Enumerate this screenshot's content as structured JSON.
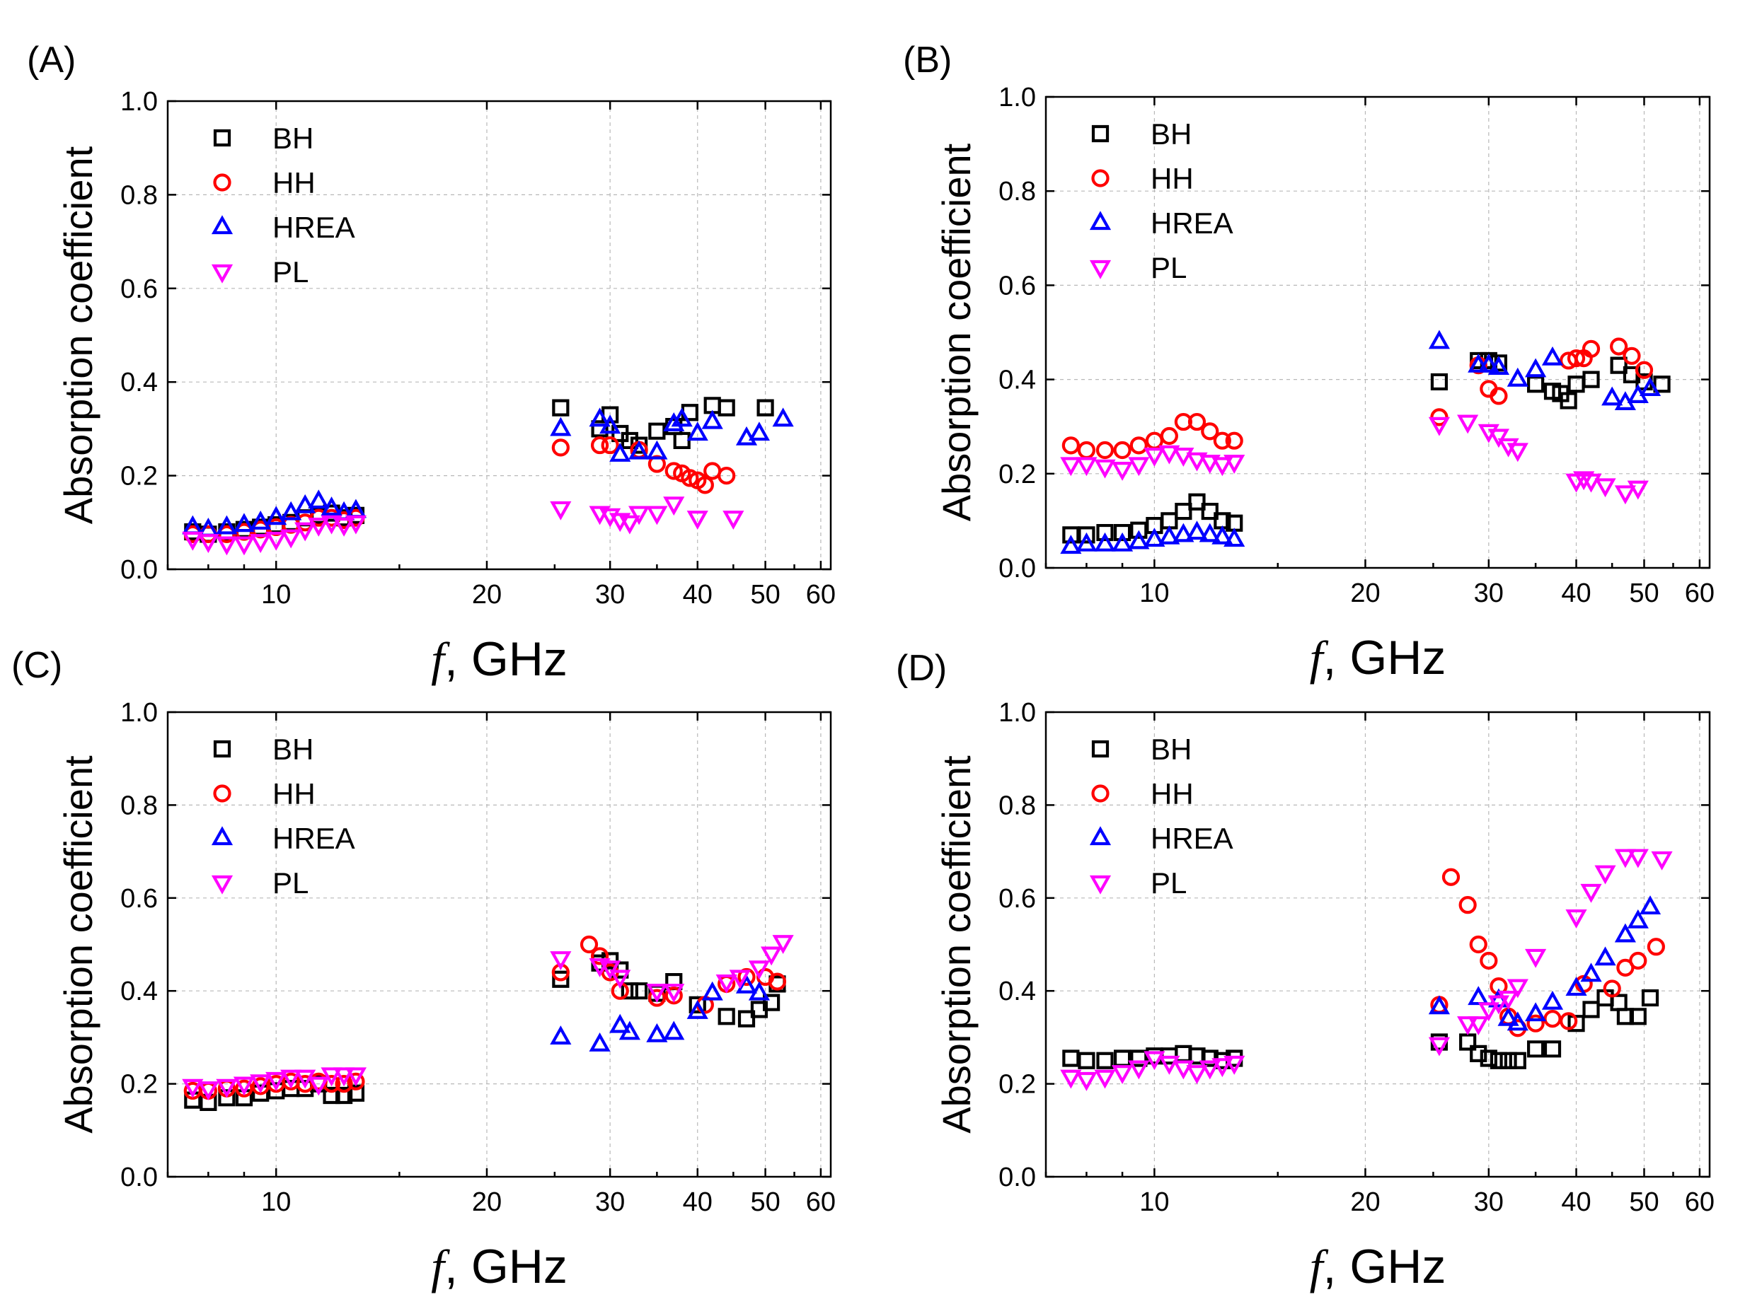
{
  "figure": {
    "series_styles": {
      "BH": {
        "color": "#000000",
        "marker": "square"
      },
      "HH": {
        "color": "#ff0000",
        "marker": "circle"
      },
      "HREA": {
        "color": "#0000ff",
        "marker": "triangle-up"
      },
      "PL": {
        "color": "#ff00ff",
        "marker": "triangle-down"
      }
    }
  },
  "chart_data": [
    {
      "panel_label": "(A)",
      "type": "scatter",
      "xlabel_italic": "f",
      "xlabel_rest": ", GHz",
      "ylabel": "Absorption coefficient",
      "xscale": "log",
      "xlim": [
        7,
        62
      ],
      "ylim": [
        0,
        1
      ],
      "xticks": [
        10,
        20,
        30,
        40,
        50,
        60
      ],
      "yticks": [
        0.0,
        0.2,
        0.4,
        0.6,
        0.8,
        1.0
      ],
      "grid": true,
      "legend_position": "top-left",
      "series": [
        {
          "name": "BH",
          "x": [
            7.6,
            8.0,
            8.5,
            9.0,
            9.5,
            10.0,
            10.5,
            11.0,
            11.5,
            12.0,
            12.5,
            13.0,
            25.5,
            29.0,
            30.0,
            31.0,
            32.0,
            33.0,
            35.0,
            37.0,
            38.0,
            39.0,
            42.0,
            44.0,
            50.0
          ],
          "y": [
            0.08,
            0.075,
            0.08,
            0.085,
            0.09,
            0.095,
            0.1,
            0.11,
            0.115,
            0.12,
            0.11,
            0.115,
            0.345,
            0.3,
            0.33,
            0.29,
            0.275,
            0.265,
            0.295,
            0.305,
            0.275,
            0.335,
            0.35,
            0.345,
            0.345
          ]
        },
        {
          "name": "HH",
          "x": [
            7.6,
            8.0,
            8.5,
            9.0,
            9.5,
            10.0,
            10.5,
            11.0,
            11.5,
            12.0,
            12.5,
            13.0,
            25.5,
            29.0,
            30.0,
            33.0,
            35.0,
            37.0,
            38.0,
            39.0,
            40.0,
            41.0,
            42.0,
            44.0
          ],
          "y": [
            0.075,
            0.075,
            0.075,
            0.08,
            0.085,
            0.09,
            0.095,
            0.1,
            0.11,
            0.11,
            0.105,
            0.11,
            0.26,
            0.265,
            0.265,
            0.255,
            0.225,
            0.21,
            0.205,
            0.195,
            0.19,
            0.18,
            0.21,
            0.2
          ]
        },
        {
          "name": "HREA",
          "x": [
            7.6,
            8.0,
            8.5,
            9.0,
            9.5,
            10.0,
            10.5,
            11.0,
            11.5,
            12.0,
            12.5,
            13.0,
            25.5,
            29.0,
            30.0,
            31.0,
            33.0,
            35.0,
            37.0,
            38.0,
            40.0,
            42.0,
            47.0,
            49.0,
            53.0
          ],
          "y": [
            0.09,
            0.085,
            0.09,
            0.095,
            0.1,
            0.11,
            0.12,
            0.135,
            0.145,
            0.13,
            0.12,
            0.125,
            0.3,
            0.32,
            0.305,
            0.245,
            0.25,
            0.25,
            0.31,
            0.32,
            0.29,
            0.315,
            0.28,
            0.29,
            0.32
          ]
        },
        {
          "name": "PL",
          "x": [
            7.6,
            8.0,
            8.5,
            9.0,
            9.5,
            10.0,
            10.5,
            11.0,
            11.5,
            12.0,
            12.5,
            13.0,
            25.5,
            29.0,
            30.0,
            31.0,
            32.0,
            33.0,
            35.0,
            37.0,
            40.0,
            45.0
          ],
          "y": [
            0.065,
            0.06,
            0.055,
            0.055,
            0.06,
            0.065,
            0.07,
            0.085,
            0.095,
            0.1,
            0.095,
            0.1,
            0.13,
            0.12,
            0.115,
            0.105,
            0.1,
            0.12,
            0.12,
            0.14,
            0.11,
            0.11
          ]
        }
      ]
    },
    {
      "panel_label": "(B)",
      "type": "scatter",
      "xlabel_italic": "f",
      "xlabel_rest": ", GHz",
      "ylabel": "Absorption coefficient",
      "xscale": "log",
      "xlim": [
        7,
        62
      ],
      "ylim": [
        0,
        1
      ],
      "xticks": [
        10,
        20,
        30,
        40,
        50,
        60
      ],
      "yticks": [
        0.0,
        0.2,
        0.4,
        0.6,
        0.8,
        1.0
      ],
      "grid": true,
      "legend_position": "top-left",
      "series": [
        {
          "name": "BH",
          "x": [
            7.6,
            8.0,
            8.5,
            9.0,
            9.5,
            10.0,
            10.5,
            11.0,
            11.5,
            12.0,
            12.5,
            13.0,
            25.5,
            29.0,
            30.0,
            31.0,
            35.0,
            37.0,
            38.0,
            39.0,
            40.0,
            42.0,
            46.0,
            48.0,
            50.0,
            53.0
          ],
          "y": [
            0.07,
            0.07,
            0.075,
            0.075,
            0.08,
            0.09,
            0.1,
            0.12,
            0.14,
            0.12,
            0.1,
            0.095,
            0.395,
            0.44,
            0.44,
            0.435,
            0.39,
            0.375,
            0.37,
            0.355,
            0.39,
            0.4,
            0.43,
            0.41,
            0.395,
            0.39
          ]
        },
        {
          "name": "HH",
          "x": [
            7.6,
            8.0,
            8.5,
            9.0,
            9.5,
            10.0,
            10.5,
            11.0,
            11.5,
            12.0,
            12.5,
            13.0,
            25.5,
            29.0,
            30.0,
            31.0,
            39.0,
            40.0,
            41.0,
            42.0,
            46.0,
            48.0,
            50.0
          ],
          "y": [
            0.26,
            0.25,
            0.25,
            0.25,
            0.26,
            0.27,
            0.28,
            0.31,
            0.31,
            0.29,
            0.27,
            0.27,
            0.32,
            0.43,
            0.38,
            0.365,
            0.44,
            0.445,
            0.445,
            0.465,
            0.47,
            0.45,
            0.42
          ]
        },
        {
          "name": "HREA",
          "x": [
            7.6,
            8.0,
            8.5,
            9.0,
            9.5,
            10.0,
            10.5,
            11.0,
            11.5,
            12.0,
            12.5,
            13.0,
            25.5,
            29.0,
            30.0,
            31.0,
            33.0,
            35.0,
            37.0,
            45.0,
            47.0,
            49.0,
            51.0
          ],
          "y": [
            0.045,
            0.05,
            0.05,
            0.05,
            0.055,
            0.06,
            0.065,
            0.07,
            0.075,
            0.07,
            0.065,
            0.06,
            0.48,
            0.43,
            0.43,
            0.425,
            0.4,
            0.42,
            0.445,
            0.36,
            0.35,
            0.365,
            0.38
          ]
        },
        {
          "name": "PL",
          "x": [
            7.6,
            8.0,
            8.5,
            9.0,
            9.5,
            10.0,
            10.5,
            11.0,
            11.5,
            12.0,
            12.5,
            13.0,
            25.5,
            28.0,
            30.0,
            31.0,
            32.0,
            33.0,
            40.0,
            41.0,
            42.0,
            44.0,
            47.0,
            49.0
          ],
          "y": [
            0.22,
            0.22,
            0.215,
            0.21,
            0.22,
            0.24,
            0.245,
            0.24,
            0.23,
            0.225,
            0.22,
            0.225,
            0.305,
            0.31,
            0.29,
            0.28,
            0.26,
            0.25,
            0.185,
            0.19,
            0.185,
            0.175,
            0.16,
            0.17
          ]
        }
      ]
    },
    {
      "panel_label": "(C)",
      "type": "scatter",
      "xlabel_italic": "f",
      "xlabel_rest": ", GHz",
      "ylabel": "Absorption coefficient",
      "xscale": "log",
      "xlim": [
        7,
        62
      ],
      "ylim": [
        0,
        1
      ],
      "xticks": [
        10,
        20,
        30,
        40,
        50,
        60
      ],
      "yticks": [
        0.0,
        0.2,
        0.4,
        0.6,
        0.8,
        1.0
      ],
      "grid": true,
      "legend_position": "top-left",
      "series": [
        {
          "name": "BH",
          "x": [
            7.6,
            8.0,
            8.5,
            9.0,
            9.5,
            10.0,
            10.5,
            11.0,
            11.5,
            12.0,
            12.5,
            13.0,
            25.5,
            29.0,
            30.0,
            31.0,
            32.0,
            33.0,
            35.0,
            37.0,
            40.0,
            44.0,
            47.0,
            49.0,
            51.0,
            52.0
          ],
          "y": [
            0.165,
            0.16,
            0.17,
            0.17,
            0.18,
            0.185,
            0.19,
            0.19,
            0.2,
            0.175,
            0.175,
            0.18,
            0.425,
            0.46,
            0.465,
            0.445,
            0.4,
            0.4,
            0.395,
            0.42,
            0.37,
            0.345,
            0.34,
            0.36,
            0.375,
            0.415
          ]
        },
        {
          "name": "HH",
          "x": [
            7.6,
            8.0,
            8.5,
            9.0,
            9.5,
            10.0,
            10.5,
            11.0,
            11.5,
            12.0,
            12.5,
            13.0,
            25.5,
            28.0,
            29.0,
            30.0,
            31.0,
            35.0,
            37.0,
            41.0,
            44.0,
            47.0,
            50.0,
            52.0
          ],
          "y": [
            0.185,
            0.185,
            0.19,
            0.19,
            0.195,
            0.2,
            0.205,
            0.2,
            0.205,
            0.2,
            0.2,
            0.205,
            0.44,
            0.5,
            0.475,
            0.44,
            0.4,
            0.385,
            0.39,
            0.37,
            0.415,
            0.43,
            0.43,
            0.42
          ]
        },
        {
          "name": "HREA",
          "x": [
            25.5,
            29.0,
            31.0,
            32.0,
            35.0,
            37.0,
            40.0,
            42.0,
            47.0,
            49.0
          ],
          "y": [
            0.3,
            0.285,
            0.325,
            0.31,
            0.305,
            0.31,
            0.355,
            0.395,
            0.41,
            0.395
          ]
        },
        {
          "name": "PL",
          "x": [
            7.6,
            8.0,
            8.5,
            9.0,
            9.5,
            10.0,
            10.5,
            11.0,
            11.5,
            12.0,
            12.5,
            13.0,
            25.5,
            29.0,
            30.0,
            31.0,
            35.0,
            37.0,
            44.0,
            46.0,
            49.0,
            51.0,
            53.0
          ],
          "y": [
            0.195,
            0.19,
            0.195,
            0.2,
            0.205,
            0.21,
            0.215,
            0.215,
            0.2,
            0.22,
            0.22,
            0.22,
            0.47,
            0.455,
            0.45,
            0.43,
            0.4,
            0.4,
            0.42,
            0.43,
            0.45,
            0.48,
            0.505
          ]
        }
      ]
    },
    {
      "panel_label": "(D)",
      "type": "scatter",
      "xlabel_italic": "f",
      "xlabel_rest": ", GHz",
      "ylabel": "Absorption coefficient",
      "xscale": "log",
      "xlim": [
        7,
        62
      ],
      "ylim": [
        0,
        1
      ],
      "xticks": [
        10,
        20,
        30,
        40,
        50,
        60
      ],
      "yticks": [
        0.0,
        0.2,
        0.4,
        0.6,
        0.8,
        1.0
      ],
      "grid": true,
      "legend_position": "top-left",
      "series": [
        {
          "name": "BH",
          "x": [
            7.6,
            8.0,
            8.5,
            9.0,
            9.5,
            10.0,
            10.5,
            11.0,
            11.5,
            12.0,
            12.5,
            13.0,
            25.5,
            28.0,
            29.0,
            30.0,
            31.0,
            32.0,
            33.0,
            35.0,
            37.0,
            40.0,
            42.0,
            44.0,
            46.0,
            47.0,
            49.0,
            51.0
          ],
          "y": [
            0.255,
            0.25,
            0.25,
            0.255,
            0.255,
            0.26,
            0.26,
            0.265,
            0.26,
            0.255,
            0.25,
            0.255,
            0.29,
            0.29,
            0.265,
            0.255,
            0.25,
            0.25,
            0.25,
            0.275,
            0.275,
            0.33,
            0.36,
            0.385,
            0.375,
            0.345,
            0.345,
            0.385
          ]
        },
        {
          "name": "HH",
          "x": [
            25.5,
            26.5,
            28.0,
            29.0,
            30.0,
            31.0,
            32.0,
            33.0,
            35.0,
            37.0,
            39.0,
            41.0,
            45.0,
            47.0,
            49.0,
            52.0
          ],
          "y": [
            0.37,
            0.645,
            0.585,
            0.5,
            0.465,
            0.41,
            0.345,
            0.32,
            0.33,
            0.34,
            0.335,
            0.415,
            0.405,
            0.45,
            0.465,
            0.495
          ]
        },
        {
          "name": "HREA",
          "x": [
            25.5,
            29.0,
            31.0,
            32.0,
            33.0,
            35.0,
            37.0,
            40.0,
            42.0,
            44.0,
            47.0,
            49.0,
            51.0
          ],
          "y": [
            0.365,
            0.385,
            0.38,
            0.34,
            0.33,
            0.35,
            0.375,
            0.405,
            0.435,
            0.47,
            0.52,
            0.55,
            0.58
          ]
        },
        {
          "name": "PL",
          "x": [
            7.6,
            8.0,
            8.5,
            9.0,
            9.5,
            10.0,
            10.5,
            11.0,
            11.5,
            12.0,
            12.5,
            13.0,
            25.5,
            28.0,
            29.0,
            30.0,
            31.0,
            32.0,
            33.0,
            35.0,
            40.0,
            42.0,
            44.0,
            47.0,
            49.0,
            53.0
          ],
          "y": [
            0.215,
            0.21,
            0.215,
            0.225,
            0.235,
            0.255,
            0.245,
            0.235,
            0.225,
            0.235,
            0.24,
            0.245,
            0.285,
            0.33,
            0.33,
            0.36,
            0.375,
            0.385,
            0.41,
            0.475,
            0.56,
            0.615,
            0.655,
            0.69,
            0.69,
            0.685
          ]
        }
      ]
    }
  ]
}
